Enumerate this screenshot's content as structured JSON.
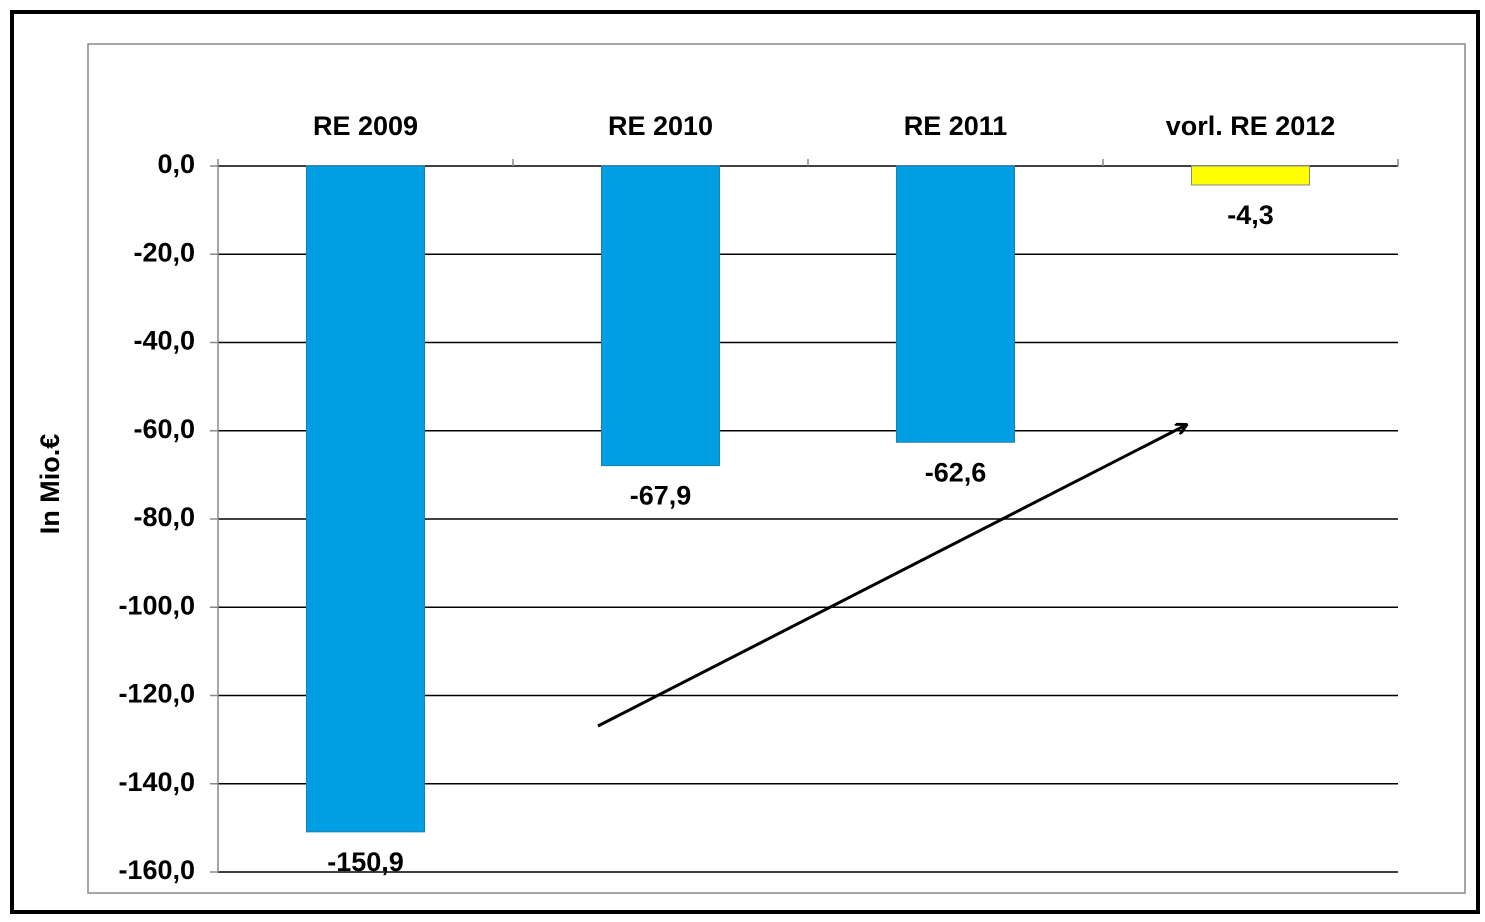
{
  "chart_data": {
    "type": "bar",
    "y_axis_label": "In Mio.€",
    "categories": [
      "RE 2009",
      "RE 2010",
      "RE 2011",
      "vorl. RE 2012"
    ],
    "values": [
      -150.9,
      -67.9,
      -62.6,
      -4.3
    ],
    "value_labels": [
      "-150,9",
      "-67,9",
      "-62,6",
      "-4,3"
    ],
    "colors": [
      "#009fe3",
      "#009fe3",
      "#009fe3",
      "#ffff00"
    ],
    "ylim": [
      -160,
      0
    ],
    "yticks": [
      {
        "value": 0,
        "label": "0,0"
      },
      {
        "value": -20,
        "label": "-20,0"
      },
      {
        "value": -40,
        "label": "-40,0"
      },
      {
        "value": -60,
        "label": "-60,0"
      },
      {
        "value": -80,
        "label": "-80,0"
      },
      {
        "value": -100,
        "label": "-100,0"
      },
      {
        "value": -120,
        "label": "-120,0"
      },
      {
        "value": -140,
        "label": "-140,0"
      },
      {
        "value": -160,
        "label": "-160,0"
      }
    ],
    "grid": true
  }
}
